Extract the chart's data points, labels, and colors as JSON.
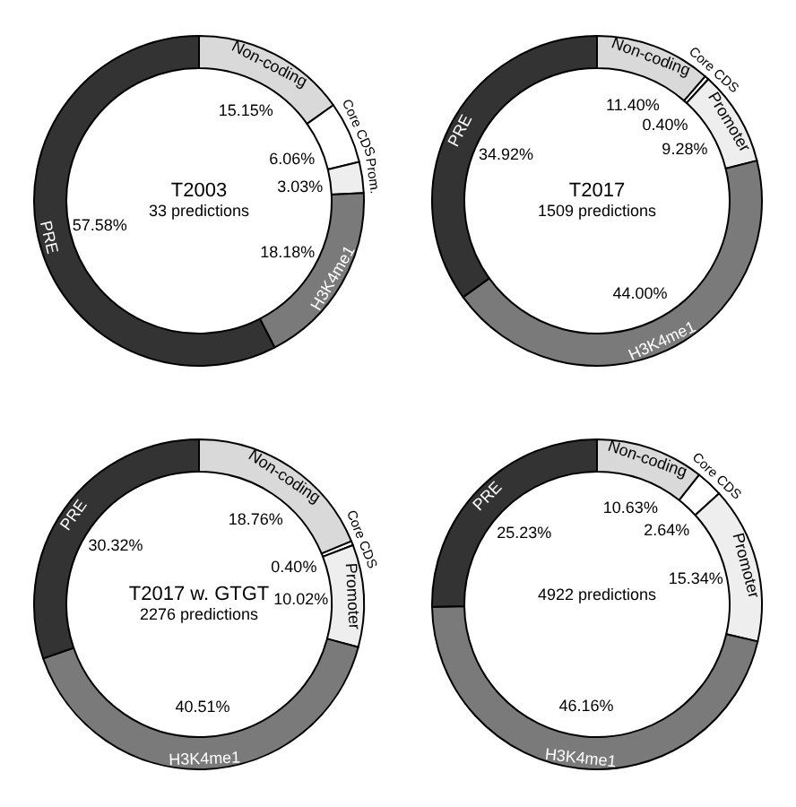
{
  "chart_data": [
    {
      "type": "donut",
      "title": "T2003",
      "subtitle": "33 predictions",
      "categories": [
        "Non-coding",
        "Core CDS",
        "Prom.",
        "H3K4me1",
        "PRE"
      ],
      "values": [
        15.15,
        6.06,
        3.03,
        18.18,
        57.58
      ],
      "value_labels": [
        "15.15%",
        "6.06%",
        "3.03%",
        "18.18%",
        "57.58%"
      ],
      "colors": [
        "#d9d9d9",
        "#ffffff",
        "#eeeeee",
        "#7a7a7a",
        "#333333"
      ]
    },
    {
      "type": "donut",
      "title": "T2017",
      "subtitle": "1509 predictions",
      "categories": [
        "Non-coding",
        "Core CDS",
        "Promoter",
        "H3K4me1",
        "PRE"
      ],
      "values": [
        11.4,
        0.4,
        9.28,
        44.0,
        34.92
      ],
      "value_labels": [
        "11.40%",
        "0.40%",
        "9.28%",
        "44.00%",
        "34.92%"
      ],
      "colors": [
        "#d9d9d9",
        "#ffffff",
        "#eeeeee",
        "#7a7a7a",
        "#333333"
      ]
    },
    {
      "type": "donut",
      "title": "T2017 w. GTGT",
      "subtitle": "2276 predictions",
      "categories": [
        "Non-coding",
        "Core CDS",
        "Promoter",
        "H3K4me1",
        "PRE"
      ],
      "values": [
        18.76,
        0.4,
        10.02,
        40.51,
        30.32
      ],
      "value_labels": [
        "18.76%",
        "0.40%",
        "10.02%",
        "40.51%",
        "30.32%"
      ],
      "colors": [
        "#d9d9d9",
        "#ffffff",
        "#eeeeee",
        "#7a7a7a",
        "#333333"
      ]
    },
    {
      "type": "donut",
      "subtitle": "4922 predictions",
      "categories": [
        "Non-coding",
        "Core CDS",
        "Promoter",
        "H3K4me1",
        "PRE"
      ],
      "values": [
        10.63,
        2.64,
        15.34,
        46.16,
        25.23
      ],
      "value_labels": [
        "10.63%",
        "2.64%",
        "15.34%",
        "46.16%",
        "25.23%"
      ],
      "colors": [
        "#d9d9d9",
        "#ffffff",
        "#eeeeee",
        "#7a7a7a",
        "#333333"
      ]
    }
  ]
}
